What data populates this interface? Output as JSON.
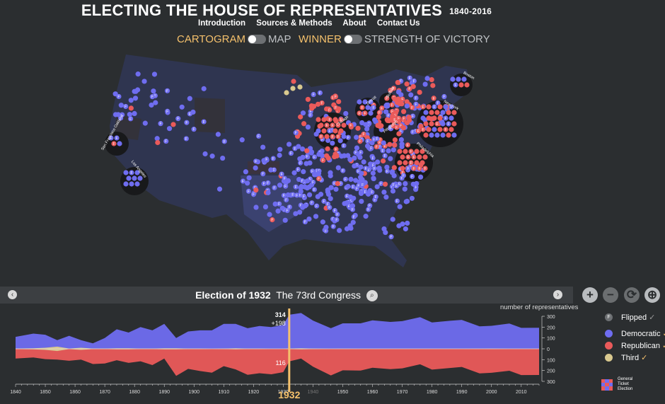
{
  "header": {
    "title": "ELECTING THE HOUSE OF REPRESENTATIVES",
    "years": "1840-2016",
    "nav": [
      "Introduction",
      "Sources & Methods",
      "About",
      "Contact Us"
    ]
  },
  "toggles": {
    "view_on": "CARTOGRAM",
    "view_off": "MAP",
    "mode_on": "WINNER",
    "mode_off": "STRENGTH OF VICTORY"
  },
  "map": {
    "city_labels": [
      "San Francisco Oakland",
      "Los Angeles",
      "Chicago",
      "Detroit",
      "Buffalo",
      "Pittsburgh",
      "Philadelphia",
      "New York",
      "Boston"
    ],
    "flipped_marker": "F"
  },
  "election_bar": {
    "prefix": "Election of 1932",
    "congress": "The 73rd Congress",
    "prev_icon": "chevron-left-icon",
    "next_icon": "chevron-right-icon",
    "search_icon": "search-icon"
  },
  "controls": {
    "zoom_in": "+",
    "zoom_out": "−",
    "reset": "⟳",
    "locate": "⊕"
  },
  "timeline": {
    "ylabel": "number of representatives",
    "y_ticks": [
      "300",
      "200",
      "100",
      "0",
      "100",
      "200",
      "300"
    ],
    "x_ticks": [
      "1840",
      "1850",
      "1860",
      "1870",
      "1880",
      "1890",
      "1900",
      "1910",
      "1920",
      "1930",
      "1940",
      "1950",
      "1960",
      "1970",
      "1980",
      "1990",
      "2000",
      "2010"
    ],
    "selected_year": "1932",
    "selected_dem": "314",
    "selected_change": "+198",
    "selected_rep": "116"
  },
  "legend": {
    "flipped": "Flipped",
    "democratic": "Democratic",
    "republican": "Republican",
    "third": "Third",
    "check": "✓",
    "general_ticket": "General Ticket Election"
  },
  "colors": {
    "background": "#2b2e30",
    "democratic": "#6f6df0",
    "republican": "#ea5a5a",
    "third": "#d9c98f",
    "accent": "#f5c16c",
    "state": "#2f3550"
  },
  "chart_data": {
    "type": "area",
    "title": "number of representatives",
    "x": [
      1840,
      1846,
      1850,
      1854,
      1858,
      1862,
      1866,
      1870,
      1874,
      1878,
      1882,
      1886,
      1890,
      1894,
      1898,
      1902,
      1906,
      1910,
      1914,
      1918,
      1922,
      1926,
      1930,
      1932,
      1936,
      1940,
      1946,
      1950,
      1956,
      1960,
      1966,
      1970,
      1976,
      1980,
      1986,
      1990,
      1996,
      2000,
      2006,
      2010,
      2016
    ],
    "series": [
      {
        "name": "Democratic",
        "values": [
          110,
          140,
          130,
          80,
          120,
          80,
          50,
          100,
          180,
          150,
          200,
          170,
          230,
          100,
          160,
          170,
          170,
          230,
          230,
          190,
          210,
          200,
          220,
          314,
          330,
          260,
          190,
          235,
          235,
          262,
          248,
          255,
          292,
          243,
          258,
          267,
          207,
          212,
          233,
          193,
          194
        ]
      },
      {
        "name": "Republican",
        "values": [
          90,
          80,
          95,
          100,
          110,
          100,
          140,
          135,
          105,
          130,
          115,
          150,
          90,
          250,
          185,
          205,
          220,
          160,
          190,
          240,
          225,
          235,
          215,
          116,
          90,
          165,
          245,
          198,
          200,
          175,
          187,
          180,
          143,
          192,
          177,
          167,
          227,
          221,
          202,
          242,
          241
        ]
      },
      {
        "name": "Third",
        "values": [
          5,
          10,
          20,
          40,
          5,
          20,
          5,
          5,
          10,
          10,
          5,
          5,
          10,
          10,
          5,
          5,
          0,
          5,
          10,
          5,
          5,
          0,
          0,
          5,
          10,
          5,
          0,
          1,
          0,
          0,
          0,
          0,
          0,
          0,
          0,
          0,
          1,
          2,
          0,
          0,
          0
        ]
      }
    ],
    "xlim": [
      1840,
      2016
    ],
    "ylim": [
      -300,
      300
    ],
    "selected_x": 1932
  }
}
